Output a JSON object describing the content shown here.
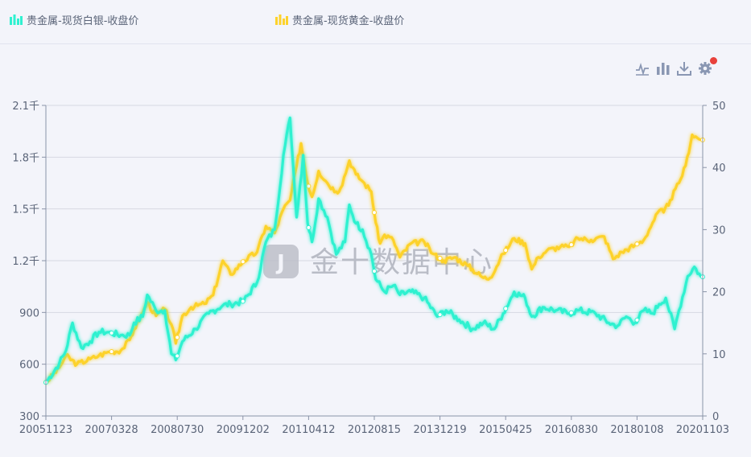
{
  "legend": [
    {
      "label": "贵金属-现货白银-收盘价",
      "color": "#2ff1d0"
    },
    {
      "label": "贵金属-现货黄金-收盘价",
      "color": "#fdd22b"
    }
  ],
  "toolbox": [
    "line-icon",
    "bar-icon",
    "download-icon",
    "gear-icon"
  ],
  "watermark": "金十数据中心",
  "chart_data": {
    "type": "line",
    "x_tick_labels": [
      "20051123",
      "20070328",
      "20080730",
      "20091202",
      "20110412",
      "20120815",
      "20131219",
      "20150425",
      "20160830",
      "20180108",
      "20201103"
    ],
    "x_range": [
      "20051123",
      "20201103"
    ],
    "y_left": {
      "ticks": [
        "300",
        "600",
        "900",
        "1.2千",
        "1.5千",
        "1.8千",
        "2.1千"
      ],
      "range": [
        300,
        2100
      ]
    },
    "y_right": {
      "ticks": [
        "0",
        "10",
        "20",
        "30",
        "40",
        "50"
      ],
      "range": [
        0,
        50
      ]
    },
    "grid": true,
    "legend_position": "top-left",
    "series": [
      {
        "name": "贵金属-现货黄金-收盘价",
        "axis": "left",
        "color": "#fdd22b",
        "x": [
          2005.9,
          2006.2,
          2006.35,
          2006.6,
          2006.9,
          2007.1,
          2007.3,
          2007.6,
          2007.8,
          2007.9,
          2008.1,
          2008.2,
          2008.4,
          2008.6,
          2008.75,
          2008.85,
          2009.0,
          2009.2,
          2009.5,
          2009.7,
          2009.92,
          2010.1,
          2010.4,
          2010.7,
          2010.9,
          2011.1,
          2011.3,
          2011.45,
          2011.6,
          2011.7,
          2011.85,
          2011.95,
          2012.1,
          2012.3,
          2012.5,
          2012.6,
          2012.8,
          2012.95,
          2013.1,
          2013.3,
          2013.4,
          2013.5,
          2013.6,
          2013.8,
          2013.95,
          2014.2,
          2014.5,
          2014.7,
          2014.95,
          2015.2,
          2015.5,
          2015.85,
          2016.0,
          2016.3,
          2016.55,
          2016.8,
          2016.95,
          2017.1,
          2017.3,
          2017.6,
          2017.8,
          2018.0,
          2018.3,
          2018.6,
          2018.8,
          2019.0,
          2019.3,
          2019.5,
          2019.7,
          2019.85,
          2019.95,
          2020.1,
          2020.3,
          2020.45,
          2020.6,
          2020.8
        ],
        "y": [
          495,
          580,
          650,
          600,
          630,
          650,
          670,
          680,
          740,
          800,
          900,
          960,
          880,
          920,
          830,
          720,
          880,
          930,
          950,
          1000,
          1200,
          1120,
          1200,
          1250,
          1400,
          1360,
          1500,
          1550,
          1750,
          1880,
          1650,
          1570,
          1720,
          1650,
          1600,
          1620,
          1780,
          1700,
          1660,
          1600,
          1420,
          1300,
          1350,
          1320,
          1220,
          1300,
          1310,
          1240,
          1200,
          1220,
          1170,
          1100,
          1100,
          1240,
          1330,
          1300,
          1150,
          1220,
          1260,
          1280,
          1280,
          1330,
          1320,
          1340,
          1210,
          1250,
          1290,
          1320,
          1420,
          1490,
          1480,
          1550,
          1650,
          1750,
          1930,
          1900
        ]
      },
      {
        "name": "贵金属-现货白银-收盘价",
        "axis": "right",
        "color": "#2ff1d0",
        "x": [
          2005.9,
          2006.2,
          2006.35,
          2006.5,
          2006.7,
          2006.9,
          2007.1,
          2007.3,
          2007.6,
          2007.8,
          2007.9,
          2008.1,
          2008.2,
          2008.4,
          2008.6,
          2008.75,
          2008.85,
          2009.0,
          2009.3,
          2009.6,
          2009.92,
          2010.1,
          2010.4,
          2010.7,
          2010.9,
          2011.1,
          2011.3,
          2011.45,
          2011.6,
          2011.75,
          2011.85,
          2011.95,
          2012.1,
          2012.3,
          2012.5,
          2012.7,
          2012.8,
          2012.95,
          2013.1,
          2013.3,
          2013.4,
          2013.6,
          2013.8,
          2013.95,
          2014.2,
          2014.5,
          2014.8,
          2015.0,
          2015.3,
          2015.6,
          2015.85,
          2016.1,
          2016.3,
          2016.55,
          2016.8,
          2016.95,
          2017.2,
          2017.5,
          2017.8,
          2018.0,
          2018.4,
          2018.7,
          2018.9,
          2019.1,
          2019.3,
          2019.5,
          2019.7,
          2019.85,
          2020.0,
          2020.2,
          2020.3,
          2020.5,
          2020.65,
          2020.8
        ],
        "y": [
          5.4,
          8.5,
          10.5,
          15,
          11,
          12,
          13.5,
          13.5,
          13,
          13,
          15,
          16,
          19.5,
          17,
          17,
          10,
          9,
          12,
          14,
          16.5,
          17.8,
          18,
          18.5,
          21.5,
          28,
          30,
          42,
          48,
          32,
          42,
          31,
          28,
          35,
          32,
          26,
          28,
          34,
          31,
          30,
          26,
          22,
          20,
          21,
          19.5,
          20,
          19,
          16,
          17,
          15.5,
          14,
          15,
          14,
          16.5,
          20,
          19,
          16,
          17.5,
          17,
          16.5,
          17,
          16.5,
          15,
          14.5,
          16,
          15,
          17,
          16.5,
          18,
          19,
          14,
          17,
          22.5,
          24,
          22.4
        ]
      }
    ]
  }
}
